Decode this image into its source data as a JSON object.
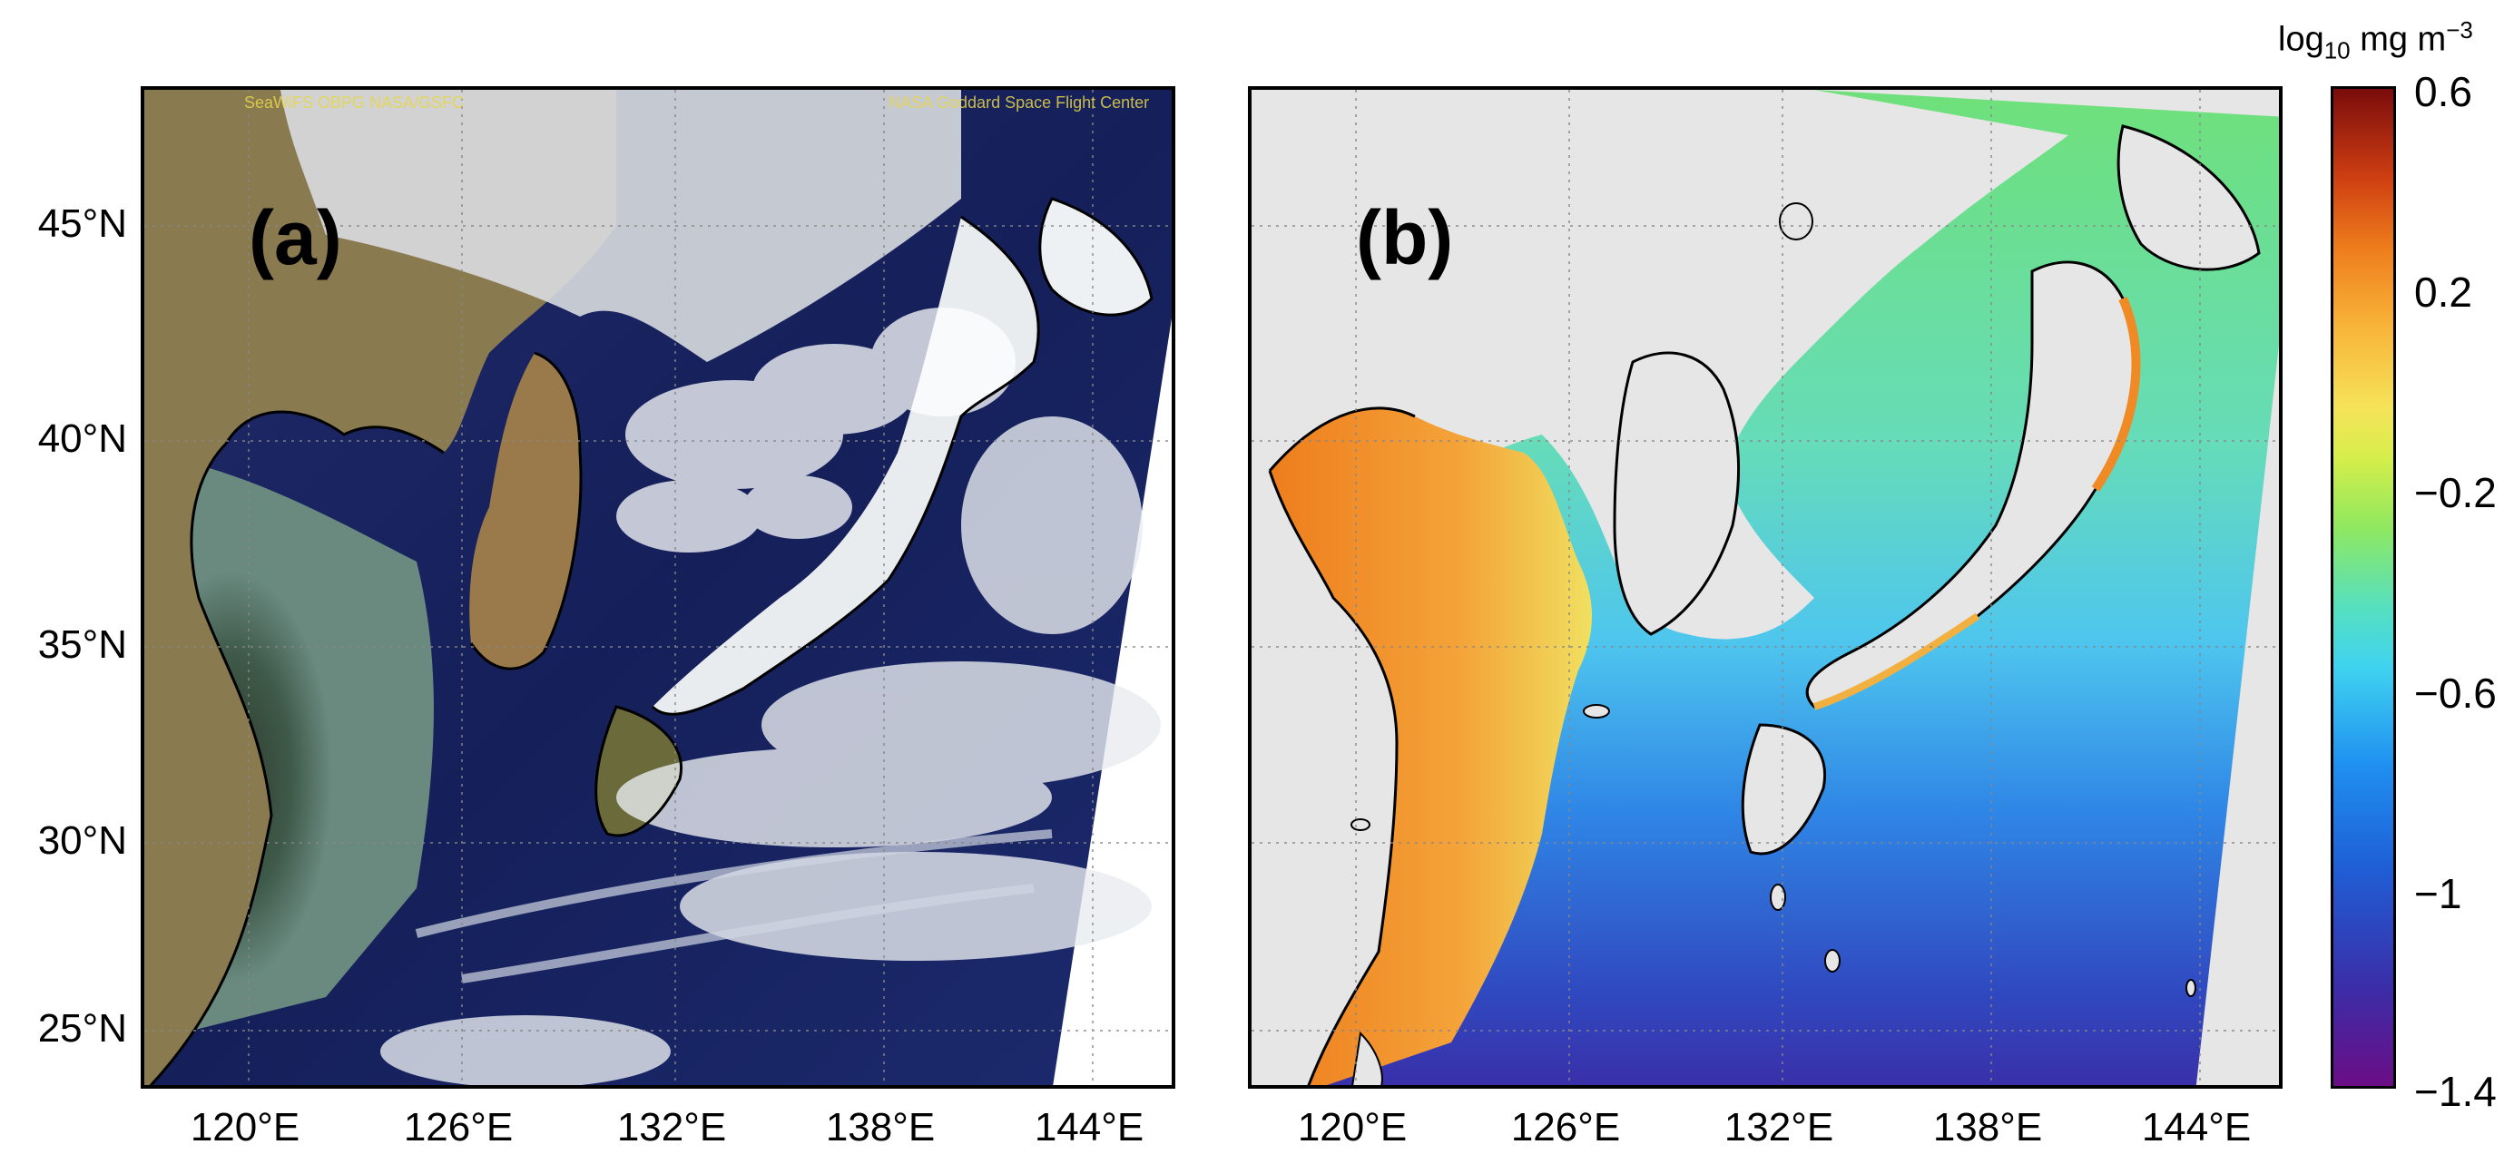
{
  "panels": [
    {
      "label": "(a)",
      "product": "true-color satellite composite"
    },
    {
      "label": "(b)",
      "product": "chlorophyll-a concentration"
    }
  ],
  "credit": {
    "left": "SeaWiFS OBPG NASA/GSFC",
    "right": "NASA Goddard Space Flight Center"
  },
  "lat_labels": [
    "45°N",
    "40°N",
    "35°N",
    "30°N",
    "25°N"
  ],
  "lon_labels": [
    "120°E",
    "126°E",
    "132°E",
    "138°E",
    "144°E"
  ],
  "colorbar": {
    "title_base": "log",
    "title_sub": "10",
    "title_unit": " mg m",
    "title_sup": "−3",
    "ticks": [
      "0.6",
      "0.2",
      "−0.2",
      "−0.6",
      "−1",
      "−1.4"
    ],
    "range": [
      -1.4,
      0.6
    ],
    "colormap": "jet",
    "colors": {
      "low": "#6b0d86",
      "mid": "#56e0c0",
      "high": "#7a0c0c"
    }
  },
  "map": {
    "lat_range": [
      23.5,
      48
    ],
    "lon_range": [
      116.5,
      146
    ],
    "land_color_b": "#e6e6e6",
    "grid": "dotted"
  }
}
